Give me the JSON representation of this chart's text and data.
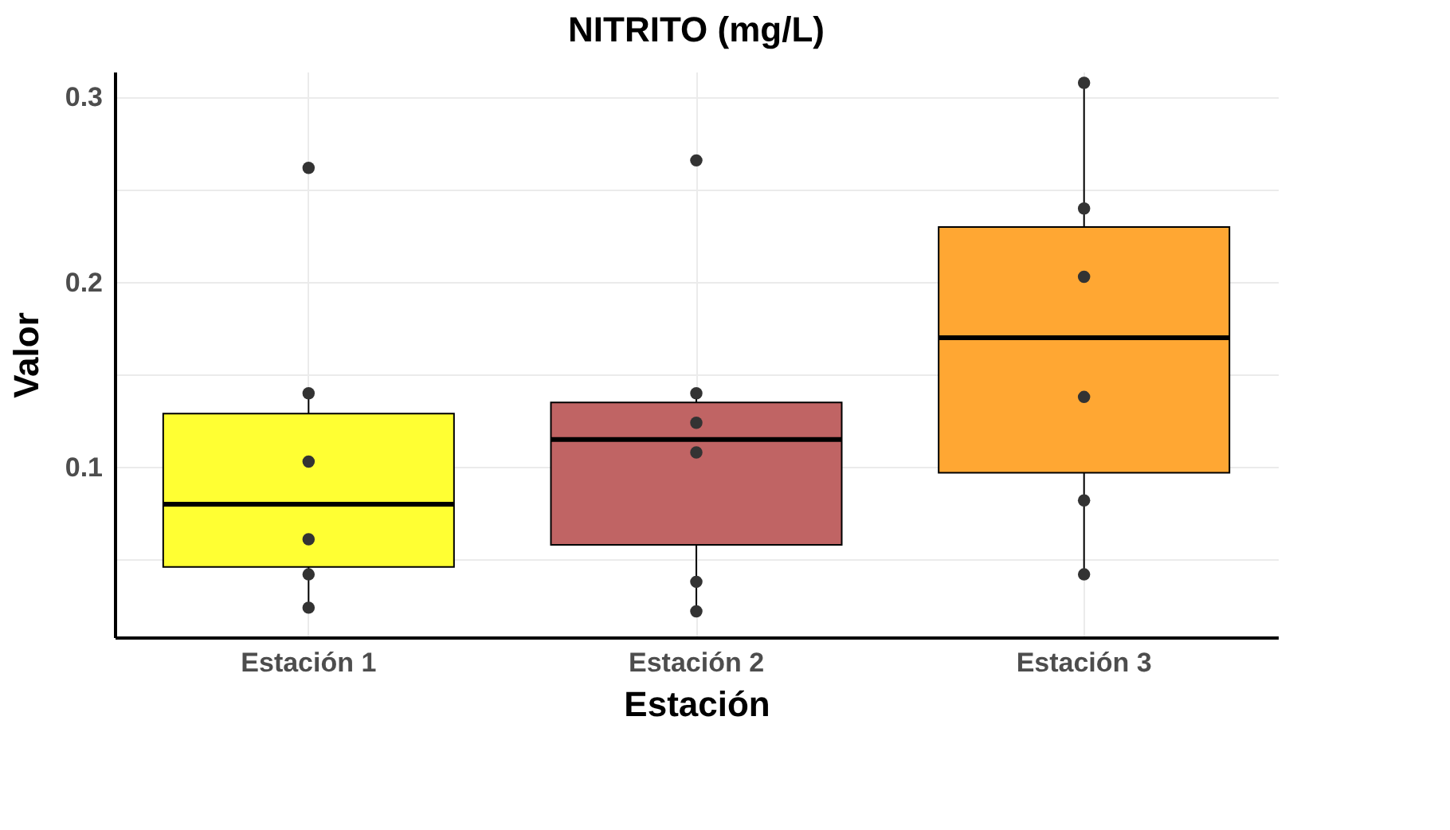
{
  "chart_data": {
    "type": "box",
    "title": "NITRITO (mg/L)",
    "xlabel": "Estación",
    "ylabel": "Valor",
    "categories": [
      "Estación 1",
      "Estación 2",
      "Estación 3"
    ],
    "colors": [
      "#ffff33",
      "#c06464",
      "#ffa733"
    ],
    "boxes": [
      {
        "low": 0.024,
        "q1": 0.046,
        "median": 0.08,
        "q3": 0.129,
        "high": 0.14
      },
      {
        "low": 0.022,
        "q1": 0.058,
        "median": 0.115,
        "q3": 0.135,
        "high": 0.141
      },
      {
        "low": 0.0425,
        "q1": 0.097,
        "median": 0.17,
        "q3": 0.23,
        "high": 0.31
      }
    ],
    "series": [
      {
        "type": "scatter",
        "color": "#333333",
        "x": [
          "Estación 1",
          "Estación 1",
          "Estación 1",
          "Estación 1",
          "Estación 1",
          "Estación 1",
          "Estación 2",
          "Estación 2",
          "Estación 2",
          "Estación 2",
          "Estación 2",
          "Estación 2",
          "Estación 3",
          "Estación 3",
          "Estación 3",
          "Estación 3",
          "Estación 3",
          "Estación 3"
        ],
        "values": [
          0.262,
          0.14,
          0.103,
          0.061,
          0.042,
          0.024,
          0.266,
          0.14,
          0.124,
          0.108,
          0.038,
          0.022,
          0.308,
          0.24,
          0.203,
          0.138,
          0.082,
          0.042
        ]
      }
    ],
    "ylim": [
      0.008,
      0.314
    ],
    "yticks": [
      {
        "value": 0.05,
        "label": null
      },
      0.1,
      {
        "value": 0.15,
        "label": null
      },
      0.2,
      {
        "value": 0.25,
        "label": null
      },
      0.3
    ],
    "grid": true,
    "marker": "circle"
  }
}
